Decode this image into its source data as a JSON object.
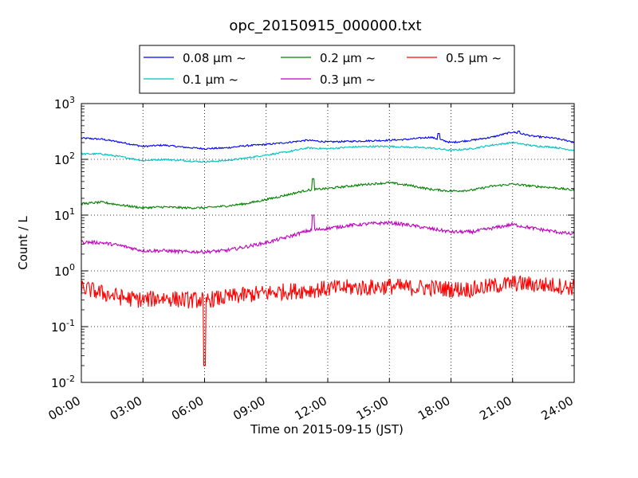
{
  "chart_data": {
    "type": "line",
    "title": "opc_20150915_000000.txt",
    "xlabel": "Time on 2015-09-15 (JST)",
    "ylabel": "Count / L",
    "y_scale": "log",
    "xlim": [
      0,
      24
    ],
    "ylim": [
      0.01,
      1000
    ],
    "grid": true,
    "legend_position": "top-center",
    "x_ticks": [
      0,
      3,
      6,
      9,
      12,
      15,
      18,
      21,
      24
    ],
    "x_tick_labels": [
      "00:00",
      "03:00",
      "06:00",
      "09:00",
      "12:00",
      "15:00",
      "18:00",
      "21:00",
      "24:00"
    ],
    "y_ticks": [
      0.01,
      0.1,
      1,
      10,
      100,
      1000
    ],
    "y_tick_labels": [
      {
        "base": "10",
        "exp": "-2"
      },
      {
        "base": "10",
        "exp": "-1"
      },
      {
        "base": "10",
        "exp": "0"
      },
      {
        "base": "10",
        "exp": "1"
      },
      {
        "base": "10",
        "exp": "2"
      },
      {
        "base": "10",
        "exp": "3"
      }
    ],
    "x": [
      0,
      1,
      2,
      3,
      4,
      5,
      6,
      7,
      8,
      9,
      10,
      11,
      12,
      13,
      14,
      15,
      16,
      17,
      18,
      19,
      20,
      21,
      22,
      23,
      24
    ],
    "series": [
      {
        "name": "0.08 μm ~",
        "color": "#0000ff",
        "values": [
          240,
          230,
          200,
          170,
          180,
          165,
          155,
          160,
          175,
          185,
          200,
          220,
          205,
          210,
          215,
          220,
          230,
          250,
          200,
          220,
          250,
          310,
          260,
          240,
          205
        ]
      },
      {
        "name": "0.1 μm ~",
        "color": "#00bfbf",
        "values": [
          125,
          125,
          110,
          95,
          100,
          95,
          90,
          95,
          105,
          120,
          135,
          160,
          155,
          165,
          170,
          170,
          165,
          160,
          145,
          155,
          180,
          200,
          175,
          165,
          145
        ]
      },
      {
        "name": "0.2 μm ~",
        "color": "#008000",
        "values": [
          16,
          17,
          15,
          13.5,
          14,
          13.5,
          13.5,
          14.5,
          16,
          19,
          23,
          28,
          30,
          33,
          36,
          38,
          34,
          29,
          27,
          28,
          33,
          36,
          33,
          31,
          28
        ]
      },
      {
        "name": "0.3 μm ~",
        "color": "#bf00bf",
        "values": [
          3.3,
          3.2,
          2.8,
          2.3,
          2.3,
          2.2,
          2.2,
          2.3,
          2.7,
          3.2,
          4,
          5.2,
          5.8,
          6.5,
          7,
          7.3,
          6.6,
          5.7,
          5,
          5,
          5.8,
          6.8,
          5.8,
          5.1,
          4.5
        ]
      },
      {
        "name": "0.5 μm ~",
        "color": "#ff0000",
        "values": [
          0.5,
          0.4,
          0.33,
          0.3,
          0.33,
          0.3,
          0.3,
          0.33,
          0.37,
          0.4,
          0.43,
          0.45,
          0.48,
          0.5,
          0.5,
          0.53,
          0.5,
          0.5,
          0.47,
          0.47,
          0.53,
          0.6,
          0.57,
          0.55,
          0.5
        ]
      }
    ],
    "annotations": [
      {
        "series": "0.5 μm ~",
        "x": 6.0,
        "y": 0.02,
        "note_type": "dip"
      },
      {
        "series": "0.2 μm ~",
        "x": 11.3,
        "y": 45,
        "note_type": "spike"
      },
      {
        "series": "0.3 μm ~",
        "x": 11.3,
        "y": 10,
        "note_type": "spike"
      },
      {
        "series": "0.08 μm ~",
        "x": 17.4,
        "y": 290,
        "note_type": "spike"
      },
      {
        "series": "0.08 μm ~",
        "x": 21.3,
        "y": 320,
        "note_type": "spike"
      }
    ]
  }
}
